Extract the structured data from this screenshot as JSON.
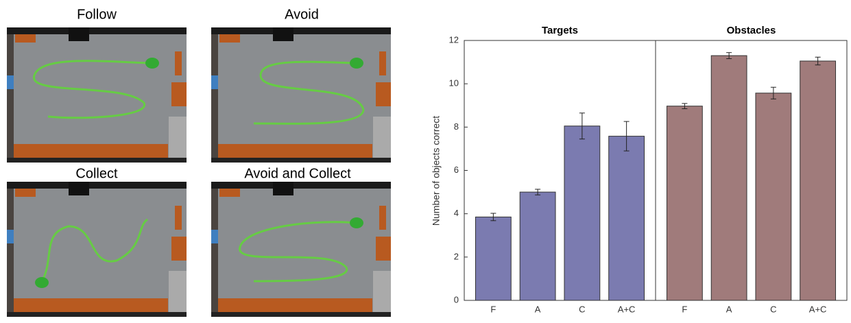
{
  "panels": [
    {
      "title": "Follow"
    },
    {
      "title": "Avoid"
    },
    {
      "title": "Collect"
    },
    {
      "title": "Avoid and Collect"
    }
  ],
  "chart_data": [
    {
      "type": "bar",
      "title": "Targets",
      "ylabel": "Number of objects correct",
      "categories": [
        "F",
        "A",
        "C",
        "A+C"
      ],
      "values": [
        3.85,
        5.0,
        8.05,
        7.58
      ],
      "errors": [
        0.17,
        0.13,
        0.6,
        0.68
      ],
      "color": "#7b7bb0",
      "ylim": [
        0,
        12
      ],
      "yticks": [
        0,
        2,
        4,
        6,
        8,
        10,
        12
      ]
    },
    {
      "type": "bar",
      "title": "Obstacles",
      "categories": [
        "F",
        "A",
        "C",
        "A+C"
      ],
      "values": [
        8.97,
        11.3,
        9.57,
        11.05
      ],
      "errors": [
        0.12,
        0.14,
        0.27,
        0.18
      ],
      "color": "#a07b7b",
      "ylim": [
        0,
        12
      ]
    }
  ]
}
